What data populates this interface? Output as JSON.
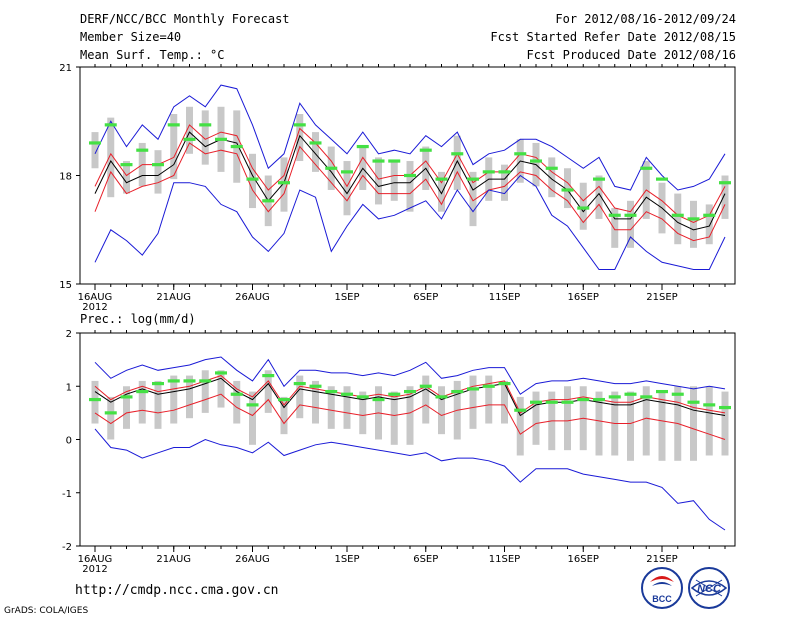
{
  "header": {
    "title": "DERF/NCC/BCC Monthly Forecast",
    "member_size": "Member Size=40",
    "variable": "Mean Surf. Temp.: °C",
    "period": "For 2012/08/16-2012/09/24",
    "started": "Fcst Started Refer Date 2012/08/15",
    "produced": "Fcst Produced Date 2012/08/16"
  },
  "footer": {
    "url": "http://cmdp.ncc.cma.gov.cn",
    "grads": "GrADS: COLA/IGES",
    "logo1_text": "BCC",
    "logo2_text": "NCC"
  },
  "colors": {
    "mean": "#000000",
    "spread": "#e8202a",
    "extreme": "#1a1ad6",
    "box": "#c8c8c8",
    "observed": "#44e044"
  },
  "chart_data": [
    {
      "type": "line",
      "title": "",
      "ylabel": "Mean Surf. Temp.: °C",
      "ylim": [
        15,
        21
      ],
      "yticks": [
        15,
        18,
        21
      ],
      "xtick_labels": [
        "16AUG",
        "21AUG",
        "26AUG",
        "1SEP",
        "6SEP",
        "11SEP",
        "16SEP",
        "21SEP"
      ],
      "xtick_days": [
        0,
        5,
        10,
        16,
        21,
        26,
        31,
        36
      ],
      "xtick_sublabel": "2012",
      "series": [
        {
          "name": "mean",
          "values": [
            17.5,
            18.4,
            17.8,
            18.0,
            18.0,
            18.3,
            19.2,
            18.8,
            19.0,
            18.9,
            18.0,
            17.3,
            17.8,
            19.1,
            18.6,
            18.1,
            17.5,
            18.2,
            17.7,
            17.8,
            17.8,
            18.2,
            17.5,
            18.4,
            17.6,
            17.9,
            17.9,
            18.4,
            18.3,
            17.9,
            17.6,
            17.0,
            17.5,
            16.8,
            16.8,
            17.4,
            17.1,
            16.7,
            16.5,
            16.6,
            17.5
          ]
        },
        {
          "name": "spread_upper",
          "values": [
            17.7,
            18.6,
            18.0,
            18.3,
            18.3,
            18.5,
            19.4,
            19.0,
            19.2,
            19.1,
            18.2,
            17.6,
            18.0,
            19.3,
            18.9,
            18.4,
            17.7,
            18.5,
            17.9,
            18.0,
            18.0,
            18.4,
            17.8,
            18.6,
            17.8,
            18.1,
            18.1,
            18.6,
            18.5,
            18.1,
            17.8,
            17.3,
            17.7,
            17.1,
            17.0,
            17.6,
            17.3,
            16.9,
            16.7,
            16.9,
            17.7
          ]
        },
        {
          "name": "spread_lower",
          "values": [
            17.0,
            18.1,
            17.5,
            17.7,
            17.8,
            18.0,
            18.9,
            18.6,
            18.7,
            18.6,
            17.6,
            17.0,
            17.5,
            18.8,
            18.3,
            17.8,
            17.3,
            18.0,
            17.5,
            17.5,
            17.5,
            17.9,
            17.2,
            18.1,
            17.3,
            17.6,
            17.7,
            18.1,
            18.0,
            17.6,
            17.3,
            16.7,
            17.2,
            16.5,
            16.5,
            17.0,
            16.8,
            16.4,
            16.2,
            16.3,
            17.2
          ]
        },
        {
          "name": "max",
          "values": [
            18.6,
            19.5,
            18.8,
            19.4,
            19.0,
            19.9,
            20.2,
            19.9,
            20.5,
            20.4,
            19.4,
            18.2,
            18.6,
            20.0,
            19.4,
            19.0,
            18.6,
            19.2,
            18.6,
            18.7,
            18.6,
            19.1,
            18.8,
            19.2,
            18.3,
            18.6,
            18.7,
            19.0,
            19.0,
            18.8,
            18.5,
            18.2,
            18.5,
            17.7,
            17.6,
            18.5,
            18.0,
            17.6,
            17.7,
            17.9,
            18.6
          ]
        },
        {
          "name": "min",
          "values": [
            15.6,
            16.5,
            16.2,
            15.8,
            16.4,
            17.8,
            17.8,
            17.7,
            17.2,
            17.0,
            16.3,
            15.9,
            16.4,
            17.6,
            17.4,
            15.9,
            16.6,
            17.2,
            16.8,
            16.9,
            17.1,
            17.3,
            16.8,
            17.6,
            17.0,
            17.6,
            17.5,
            18.0,
            17.7,
            16.9,
            16.6,
            16.0,
            15.4,
            15.4,
            16.3,
            15.9,
            15.6,
            15.5,
            15.4,
            15.4,
            16.3
          ]
        }
      ],
      "box_ranges": [
        [
          18.2,
          19.2
        ],
        [
          17.4,
          19.6
        ],
        [
          17.5,
          18.4
        ],
        [
          17.7,
          18.9
        ],
        [
          17.5,
          18.7
        ],
        [
          17.9,
          19.7
        ],
        [
          18.6,
          19.9
        ],
        [
          18.3,
          19.8
        ],
        [
          18.1,
          19.9
        ],
        [
          17.8,
          19.8
        ],
        [
          17.1,
          18.6
        ],
        [
          16.6,
          18.0
        ],
        [
          17.0,
          18.5
        ],
        [
          18.4,
          19.7
        ],
        [
          18.1,
          19.2
        ],
        [
          17.6,
          18.8
        ],
        [
          16.9,
          18.4
        ],
        [
          17.6,
          18.8
        ],
        [
          17.2,
          18.5
        ],
        [
          17.3,
          18.4
        ],
        [
          17.0,
          18.4
        ],
        [
          17.6,
          18.8
        ],
        [
          17.0,
          18.1
        ],
        [
          17.6,
          19.1
        ],
        [
          16.6,
          18.1
        ],
        [
          17.3,
          18.5
        ],
        [
          17.3,
          18.3
        ],
        [
          17.8,
          19.0
        ],
        [
          17.7,
          18.9
        ],
        [
          17.4,
          18.5
        ],
        [
          17.1,
          18.2
        ],
        [
          16.5,
          17.8
        ],
        [
          16.8,
          18.0
        ],
        [
          16.0,
          17.1
        ],
        [
          16.0,
          17.3
        ],
        [
          16.8,
          18.4
        ],
        [
          16.4,
          17.8
        ],
        [
          16.1,
          17.5
        ],
        [
          16.0,
          17.3
        ],
        [
          16.1,
          17.2
        ],
        [
          16.8,
          18.0
        ]
      ],
      "observed": [
        18.9,
        19.4,
        18.3,
        18.7,
        18.3,
        19.4,
        19.0,
        19.4,
        19.0,
        18.8,
        17.9,
        17.3,
        17.8,
        19.4,
        18.9,
        18.2,
        18.1,
        18.8,
        18.4,
        18.4,
        18.0,
        18.7,
        17.9,
        18.6,
        17.9,
        18.1,
        18.1,
        18.6,
        18.4,
        18.2,
        17.6,
        17.1,
        17.9,
        16.9,
        16.9,
        18.2,
        17.9,
        16.9,
        16.8,
        16.9,
        17.8
      ]
    },
    {
      "type": "line",
      "title": "",
      "ylabel": "Prec.: log(mm/d)",
      "ylim": [
        -2,
        2
      ],
      "yticks": [
        -2,
        -1,
        0,
        1,
        2
      ],
      "xtick_labels": [
        "16AUG",
        "21AUG",
        "26AUG",
        "1SEP",
        "6SEP",
        "11SEP",
        "16SEP",
        "21SEP"
      ],
      "xtick_days": [
        0,
        5,
        10,
        16,
        21,
        26,
        31,
        36
      ],
      "xtick_sublabel": "2012",
      "series": [
        {
          "name": "mean",
          "values": [
            0.9,
            0.7,
            0.85,
            0.95,
            0.85,
            0.9,
            0.95,
            1.05,
            1.15,
            0.9,
            0.75,
            1.05,
            0.6,
            0.95,
            0.9,
            0.85,
            0.8,
            0.75,
            0.8,
            0.75,
            0.8,
            0.95,
            0.75,
            0.85,
            0.95,
            1.0,
            1.05,
            0.45,
            0.65,
            0.7,
            0.7,
            0.75,
            0.7,
            0.65,
            0.65,
            0.75,
            0.7,
            0.65,
            0.55,
            0.5,
            0.45
          ]
        },
        {
          "name": "spread_upper",
          "values": [
            1.0,
            0.75,
            0.9,
            1.0,
            0.9,
            0.95,
            1.0,
            1.1,
            1.2,
            0.95,
            0.8,
            1.1,
            0.65,
            1.0,
            0.95,
            0.9,
            0.85,
            0.8,
            0.85,
            0.8,
            0.85,
            1.0,
            0.8,
            0.9,
            1.0,
            1.05,
            1.1,
            0.5,
            0.7,
            0.75,
            0.75,
            0.8,
            0.75,
            0.7,
            0.7,
            0.8,
            0.75,
            0.7,
            0.6,
            0.55,
            0.5
          ]
        },
        {
          "name": "spread_lower",
          "values": [
            0.5,
            0.3,
            0.5,
            0.55,
            0.5,
            0.55,
            0.65,
            0.75,
            0.85,
            0.6,
            0.45,
            0.75,
            0.3,
            0.65,
            0.6,
            0.55,
            0.5,
            0.45,
            0.5,
            0.45,
            0.5,
            0.65,
            0.45,
            0.55,
            0.6,
            0.65,
            0.65,
            0.1,
            0.3,
            0.35,
            0.35,
            0.4,
            0.35,
            0.3,
            0.3,
            0.4,
            0.35,
            0.3,
            0.2,
            0.1,
            0.0
          ]
        },
        {
          "name": "max",
          "values": [
            1.45,
            1.15,
            1.3,
            1.4,
            1.3,
            1.35,
            1.4,
            1.5,
            1.55,
            1.3,
            1.1,
            1.5,
            1.0,
            1.3,
            1.3,
            1.25,
            1.25,
            1.2,
            1.25,
            1.2,
            1.3,
            1.45,
            1.15,
            1.2,
            1.3,
            1.35,
            1.35,
            0.85,
            1.05,
            1.1,
            1.1,
            1.15,
            1.1,
            1.05,
            1.05,
            1.1,
            1.05,
            1.0,
            0.95,
            1.0,
            0.95
          ]
        },
        {
          "name": "min",
          "values": [
            0.2,
            -0.15,
            -0.2,
            -0.35,
            -0.25,
            -0.15,
            -0.15,
            0.0,
            -0.1,
            -0.15,
            -0.25,
            -0.05,
            -0.3,
            -0.2,
            -0.1,
            -0.05,
            -0.1,
            -0.15,
            -0.2,
            -0.25,
            -0.3,
            -0.25,
            -0.4,
            -0.35,
            -0.35,
            -0.4,
            -0.5,
            -0.8,
            -0.55,
            -0.55,
            -0.55,
            -0.65,
            -0.7,
            -0.75,
            -0.8,
            -0.8,
            -0.9,
            -1.2,
            -1.15,
            -1.5,
            -1.7
          ]
        }
      ],
      "box_ranges": [
        [
          0.3,
          1.1
        ],
        [
          0.0,
          0.8
        ],
        [
          0.2,
          1.0
        ],
        [
          0.3,
          1.1
        ],
        [
          0.2,
          1.1
        ],
        [
          0.3,
          1.2
        ],
        [
          0.4,
          1.2
        ],
        [
          0.5,
          1.3
        ],
        [
          0.6,
          1.3
        ],
        [
          0.3,
          1.1
        ],
        [
          -0.1,
          0.9
        ],
        [
          0.5,
          1.3
        ],
        [
          0.1,
          0.8
        ],
        [
          0.4,
          1.2
        ],
        [
          0.3,
          1.1
        ],
        [
          0.2,
          1.0
        ],
        [
          0.2,
          1.0
        ],
        [
          0.1,
          0.9
        ],
        [
          0.0,
          1.0
        ],
        [
          -0.1,
          0.9
        ],
        [
          -0.1,
          1.0
        ],
        [
          0.3,
          1.2
        ],
        [
          0.1,
          1.0
        ],
        [
          0.0,
          1.1
        ],
        [
          0.2,
          1.2
        ],
        [
          0.3,
          1.2
        ],
        [
          0.3,
          1.1
        ],
        [
          -0.3,
          0.8
        ],
        [
          -0.1,
          0.9
        ],
        [
          -0.2,
          0.9
        ],
        [
          -0.2,
          1.0
        ],
        [
          -0.2,
          1.0
        ],
        [
          -0.3,
          0.9
        ],
        [
          -0.3,
          0.9
        ],
        [
          -0.4,
          0.9
        ],
        [
          -0.3,
          1.0
        ],
        [
          -0.4,
          0.9
        ],
        [
          -0.4,
          1.0
        ],
        [
          -0.4,
          1.0
        ],
        [
          -0.3,
          1.0
        ],
        [
          -0.3,
          0.9
        ]
      ],
      "observed": [
        0.75,
        0.5,
        0.8,
        0.9,
        1.05,
        1.1,
        1.1,
        1.1,
        1.25,
        0.85,
        0.65,
        1.2,
        0.75,
        1.05,
        1.0,
        0.9,
        0.85,
        0.8,
        0.75,
        0.85,
        0.9,
        1.0,
        0.8,
        0.9,
        0.95,
        1.0,
        1.05,
        0.55,
        0.7,
        0.7,
        0.7,
        0.75,
        0.75,
        0.8,
        0.85,
        0.8,
        0.9,
        0.85,
        0.7,
        0.65,
        0.6
      ]
    }
  ]
}
